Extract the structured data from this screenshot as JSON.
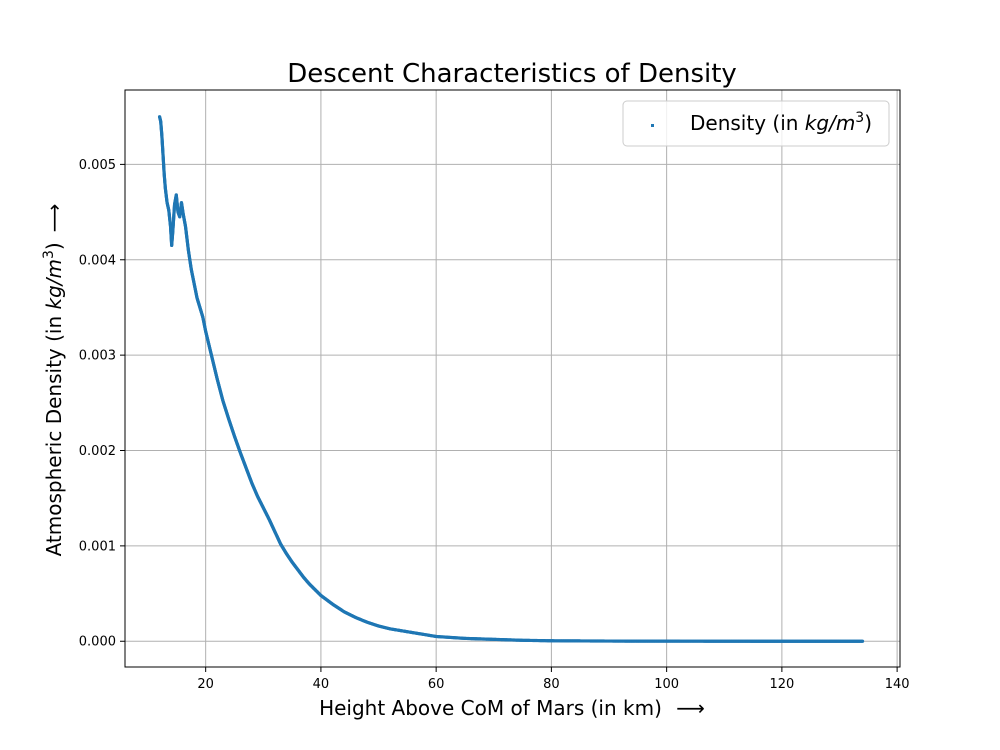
{
  "chart_data": {
    "type": "scatter",
    "title": "Descent Characteristics of Density",
    "xlabel": "Height Above CoM of Mars (in km)",
    "xlabel_arrow": "⟶",
    "ylabel_prefix": "Atmospheric Density (in ",
    "ylabel_unit_base": "kg/m",
    "ylabel_unit_exp": "3",
    "ylabel_suffix": ")",
    "ylabel_arrow": "⟶",
    "xlim": [
      6.0,
      140.5
    ],
    "ylim": [
      -0.00027,
      0.00578
    ],
    "xticks": [
      20,
      40,
      60,
      80,
      100,
      120,
      140
    ],
    "xtick_labels": [
      "20",
      "40",
      "60",
      "80",
      "100",
      "120",
      "140"
    ],
    "yticks": [
      0.0,
      0.001,
      0.002,
      0.003,
      0.004,
      0.005
    ],
    "ytick_labels": [
      "0.000",
      "0.001",
      "0.002",
      "0.003",
      "0.004",
      "0.005"
    ],
    "grid": true,
    "legend_position": "top-right",
    "series": [
      {
        "name_prefix": "Density (in ",
        "name_unit_base": "kg/m",
        "name_unit_exp": "3",
        "name_suffix": ")",
        "color": "#1f77b4",
        "points": [
          [
            12.0,
            0.0055
          ],
          [
            12.2,
            0.00545
          ],
          [
            12.4,
            0.0053
          ],
          [
            12.6,
            0.0051
          ],
          [
            12.8,
            0.0049
          ],
          [
            13.0,
            0.00475
          ],
          [
            13.3,
            0.0046
          ],
          [
            13.6,
            0.00452
          ],
          [
            13.9,
            0.00435
          ],
          [
            14.1,
            0.00415
          ],
          [
            14.3,
            0.0043
          ],
          [
            14.6,
            0.00458
          ],
          [
            14.9,
            0.00468
          ],
          [
            15.2,
            0.0045
          ],
          [
            15.5,
            0.00445
          ],
          [
            15.8,
            0.0046
          ],
          [
            16.1,
            0.00448
          ],
          [
            16.5,
            0.00435
          ],
          [
            17.0,
            0.0041
          ],
          [
            17.5,
            0.0039
          ],
          [
            18.0,
            0.00375
          ],
          [
            18.5,
            0.0036
          ],
          [
            19.0,
            0.0035
          ],
          [
            19.5,
            0.0034
          ],
          [
            20.0,
            0.00325
          ],
          [
            21.0,
            0.003
          ],
          [
            22.0,
            0.00275
          ],
          [
            23.0,
            0.00252
          ],
          [
            24.0,
            0.00233
          ],
          [
            25.0,
            0.00215
          ],
          [
            26.0,
            0.00198
          ],
          [
            27.0,
            0.00182
          ],
          [
            28.0,
            0.00166
          ],
          [
            29.0,
            0.00152
          ],
          [
            30.0,
            0.0014
          ],
          [
            31.0,
            0.00128
          ],
          [
            32.0,
            0.00115
          ],
          [
            33.0,
            0.00102
          ],
          [
            34.0,
            0.00092
          ],
          [
            35.0,
            0.00083
          ],
          [
            36.0,
            0.00075
          ],
          [
            37.0,
            0.00067
          ],
          [
            38.0,
            0.0006
          ],
          [
            39.0,
            0.00054
          ],
          [
            40.0,
            0.00048
          ],
          [
            42.0,
            0.00039
          ],
          [
            44.0,
            0.00031
          ],
          [
            46.0,
            0.00025
          ],
          [
            48.0,
            0.0002
          ],
          [
            50.0,
            0.00016
          ],
          [
            52.0,
            0.00013
          ],
          [
            55.0,
            0.0001
          ],
          [
            58.0,
            7e-05
          ],
          [
            60.0,
            5e-05
          ],
          [
            65.0,
            3e-05
          ],
          [
            70.0,
            2e-05
          ],
          [
            75.0,
            1e-05
          ],
          [
            80.0,
            5e-06
          ],
          [
            90.0,
            2e-06
          ],
          [
            100.0,
            1e-06
          ],
          [
            110.0,
            5e-07
          ],
          [
            120.0,
            2e-07
          ],
          [
            130.0,
            1e-07
          ],
          [
            134.0,
            1e-07
          ]
        ]
      }
    ]
  }
}
